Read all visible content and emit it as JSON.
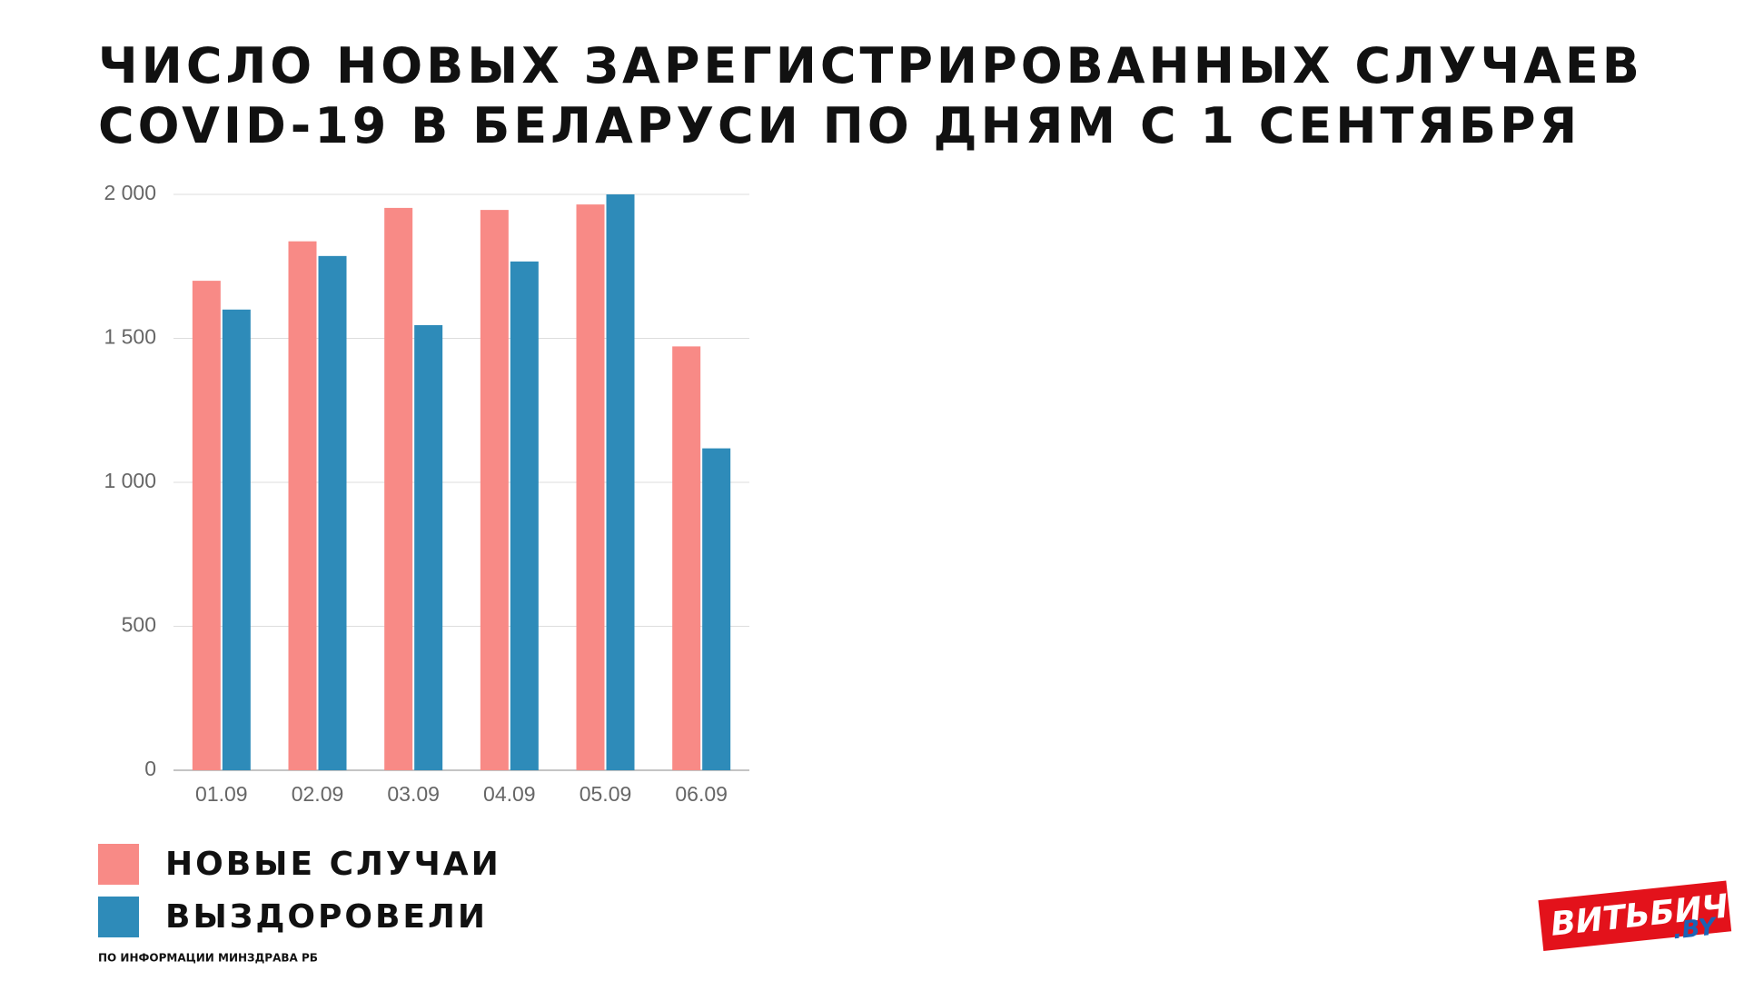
{
  "chart_data": {
    "type": "bar",
    "title": "ЧИСЛО НОВЫХ ЗАРЕГИСТРИРОВАННЫХ СЛУЧАЕВ\nCOVID-19 В БЕЛАРУСИ ПО ДНЯМ С 1 СЕНТЯБРЯ",
    "categories": [
      "01.09",
      "02.09",
      "03.09",
      "04.09",
      "05.09",
      "06.09"
    ],
    "series": [
      {
        "name": "НОВЫЕ СЛУЧАИ",
        "color": "#f88a86",
        "values": [
          1700,
          1837,
          1953,
          1946,
          1965,
          1472
        ]
      },
      {
        "name": "ВЫЗДОРОВЕЛИ",
        "color": "#2e8bb9",
        "values": [
          1600,
          1786,
          1546,
          1767,
          2000,
          1118
        ]
      }
    ],
    "ylim": [
      0,
      2000
    ],
    "yticks": [
      0,
      500,
      {
        "value": 1000,
        "label": "1 000"
      },
      {
        "value": 1500,
        "label": "1 500"
      },
      {
        "value": 2000,
        "label": "2 000"
      }
    ],
    "grid": true,
    "source": "ПО ИНФОРМАЦИИ МИНЗДРАВА РБ"
  },
  "logo": {
    "name": "ВИТЬБИЧИ",
    "domain": ".BY"
  }
}
